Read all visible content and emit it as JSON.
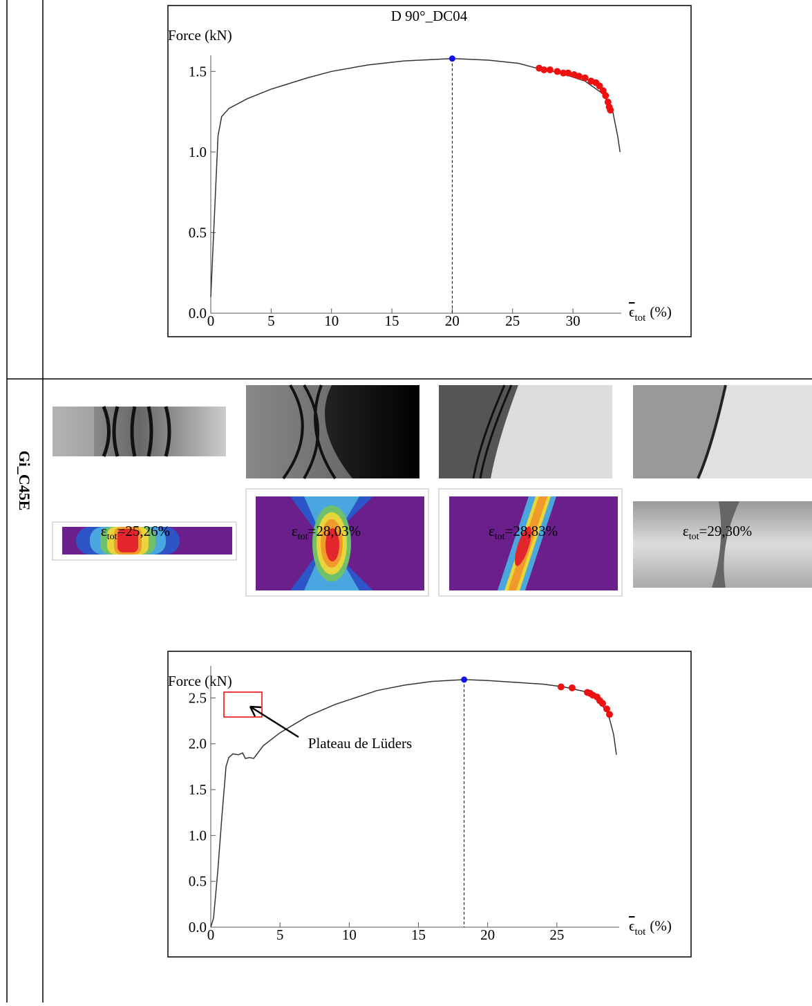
{
  "row_label": "Gi_C45E",
  "strain_labels": [
    {
      "symbol": "ε",
      "sub": "tot",
      "value": "=25,26%"
    },
    {
      "symbol": "ε",
      "sub": "tot",
      "value": "=28,03%"
    },
    {
      "symbol": "ε",
      "sub": "tot",
      "value": "=28,83%"
    },
    {
      "symbol": "ε",
      "sub": "tot",
      "value": "=29,30%"
    }
  ],
  "chart_data": [
    {
      "type": "line",
      "title": "D 90°_DC04",
      "ylabel": "Force (kN)",
      "xlabel_symbol": "ϵ",
      "xlabel_sub": "tot",
      "xlabel_unit": "(%)",
      "xlim": [
        0,
        34
      ],
      "ylim": [
        0,
        1.6
      ],
      "xticks": [
        0,
        5,
        10,
        15,
        20,
        25,
        30
      ],
      "yticks": [
        {
          "value": 0,
          "label": "0.0"
        },
        0.5,
        {
          "value": 1,
          "label": "1.0"
        },
        1.5
      ],
      "curve": {
        "color": "#333333",
        "x": [
          0,
          0.3,
          0.6,
          0.9,
          1.5,
          3,
          5,
          8,
          10,
          13,
          16,
          20,
          23,
          25.5,
          27,
          29,
          31,
          32.5,
          33.3,
          33.7,
          33.9
        ],
        "y": [
          0.1,
          0.6,
          1.1,
          1.22,
          1.27,
          1.33,
          1.39,
          1.46,
          1.5,
          1.54,
          1.565,
          1.58,
          1.57,
          1.55,
          1.52,
          1.49,
          1.44,
          1.36,
          1.25,
          1.1,
          1.0
        ]
      },
      "max_point": {
        "color": "#1010ee",
        "x": 20,
        "y": 1.58
      },
      "points": {
        "color": "#ee1111",
        "x": [
          27.2,
          27.6,
          28.1,
          28.7,
          29.2,
          29.6,
          30.1,
          30.5,
          31,
          31.5,
          31.9,
          32.2,
          32.5,
          32.7,
          32.9,
          33.0,
          33.1
        ],
        "y": [
          1.52,
          1.51,
          1.51,
          1.5,
          1.49,
          1.49,
          1.48,
          1.47,
          1.46,
          1.44,
          1.43,
          1.41,
          1.38,
          1.35,
          1.31,
          1.28,
          1.26
        ]
      }
    },
    {
      "type": "line",
      "ylabel": "Force (kN)",
      "xlabel_symbol": "ϵ",
      "xlabel_sub": "tot",
      "xlabel_unit": "(%)",
      "annotation": "Plateau de Lüders",
      "xlim": [
        0,
        29.5
      ],
      "ylim": [
        0,
        2.85
      ],
      "xticks": [
        0,
        5,
        10,
        15,
        20,
        25
      ],
      "yticks": [
        {
          "value": 0,
          "label": "0.0"
        },
        0.5,
        {
          "value": 1,
          "label": "1.0"
        },
        1.5,
        {
          "value": 2,
          "label": "2.0"
        },
        2.5
      ],
      "curve": {
        "color": "#333333",
        "x": [
          0,
          0.2,
          0.5,
          0.8,
          1.1,
          1.3,
          1.6,
          2.0,
          2.3,
          2.5,
          2.8,
          3.1,
          3.4,
          3.8,
          5,
          7,
          9,
          10,
          12,
          14,
          16,
          18.3,
          20,
          22,
          24,
          25.5,
          27,
          28,
          28.7,
          29.1,
          29.3
        ],
        "y": [
          0,
          0.1,
          0.6,
          1.2,
          1.75,
          1.85,
          1.89,
          1.88,
          1.9,
          1.84,
          1.85,
          1.84,
          1.9,
          1.98,
          2.12,
          2.3,
          2.43,
          2.48,
          2.58,
          2.64,
          2.68,
          2.7,
          2.69,
          2.67,
          2.65,
          2.62,
          2.57,
          2.47,
          2.33,
          2.1,
          1.88
        ]
      },
      "max_point": {
        "color": "#1010ee",
        "x": 18.3,
        "y": 2.7
      },
      "points": {
        "color": "#ee1111",
        "x": [
          25.3,
          26.1,
          27.2,
          27.4,
          27.6,
          27.9,
          28.1,
          28.3,
          28.6,
          28.8
        ],
        "y": [
          2.62,
          2.61,
          2.56,
          2.55,
          2.53,
          2.51,
          2.47,
          2.44,
          2.38,
          2.32
        ]
      }
    }
  ]
}
